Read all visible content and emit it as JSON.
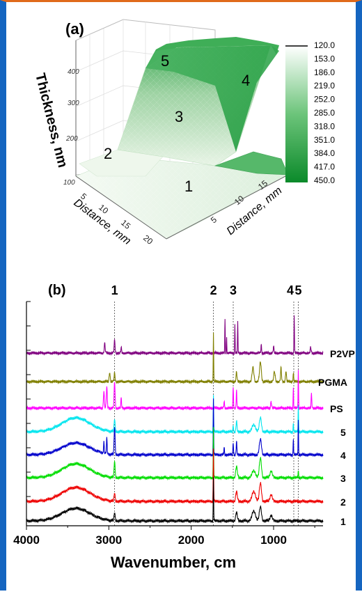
{
  "panel_a": {
    "label": "(a)",
    "z_axis_label": "Thickness, nm",
    "z_ticks": [
      "100",
      "200",
      "300",
      "400"
    ],
    "x_axis_label": "Distance, mm",
    "x_ticks": [
      "5",
      "10",
      "15",
      "20"
    ],
    "y_axis_label": "Distance, mm",
    "y_ticks": [
      "5",
      "10",
      "15"
    ],
    "region_labels": [
      "1",
      "2",
      "3",
      "4",
      "5"
    ],
    "colorbar_levels": [
      "120.0",
      "153.0",
      "186.0",
      "219.0",
      "252.0",
      "285.0",
      "318.0",
      "351.0",
      "384.0",
      "417.0",
      "450.0"
    ],
    "colors": {
      "low": "#ffffff",
      "high": "#0b8a2a"
    }
  },
  "panel_b": {
    "label": "(b)",
    "peak_labels": [
      "1",
      "2",
      "3",
      "4",
      "5"
    ],
    "x_axis_label": "Wavenumber, cm",
    "x_ticks": [
      "4000",
      "3000",
      "2000",
      "1000"
    ],
    "trace_labels": [
      "P2VP",
      "PGMA",
      "PS",
      "5",
      "4",
      "3",
      "2",
      "1"
    ]
  },
  "chart_data": [
    {
      "type": "surface",
      "title": "(a)",
      "xlabel": "Distance, mm",
      "ylabel": "Distance, mm",
      "zlabel": "Thickness, nm",
      "xlim": [
        0,
        22
      ],
      "ylim": [
        0,
        18
      ],
      "zlim": [
        100,
        450
      ],
      "color_scale": [
        120.0,
        153.0,
        186.0,
        219.0,
        252.0,
        285.0,
        318.0,
        351.0,
        384.0,
        417.0,
        450.0
      ],
      "regions": [
        {
          "label": "1",
          "thickness": 130
        },
        {
          "label": "2",
          "thickness": 200
        },
        {
          "label": "3",
          "thickness": 280
        },
        {
          "label": "4",
          "thickness": 410
        },
        {
          "label": "5",
          "thickness": 440
        }
      ]
    },
    {
      "type": "line",
      "title": "(b)",
      "xlabel": "Wavenumber, cm",
      "xlim": [
        4000,
        400
      ],
      "peak_positions": [
        {
          "label": "1",
          "x": 2930
        },
        {
          "label": "2",
          "x": 1730
        },
        {
          "label": "3",
          "x": 1490
        },
        {
          "label": "4",
          "x": 755
        },
        {
          "label": "5",
          "x": 700
        }
      ],
      "series": [
        {
          "name": "P2VP",
          "color": "#800080"
        },
        {
          "name": "PGMA",
          "color": "#808000"
        },
        {
          "name": "PS",
          "color": "#ff00ff"
        },
        {
          "name": "5",
          "color": "#00e5ee"
        },
        {
          "name": "4",
          "color": "#0000cc"
        },
        {
          "name": "3",
          "color": "#00dd00"
        },
        {
          "name": "2",
          "color": "#ee0000"
        },
        {
          "name": "1",
          "color": "#000000"
        }
      ]
    }
  ]
}
